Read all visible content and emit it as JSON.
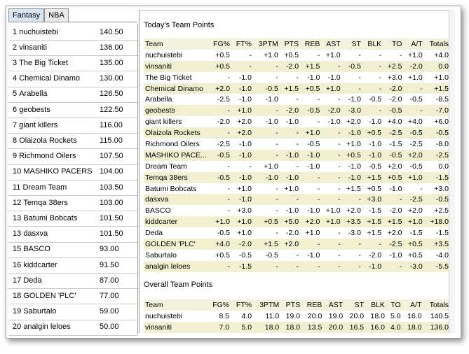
{
  "tabs": [
    "Fantasy",
    "NBA"
  ],
  "standings": [
    {
      "rank": "1",
      "name": "nuchuistebi",
      "points": "140.50"
    },
    {
      "rank": "2",
      "name": "vinsaniti",
      "points": "136.00"
    },
    {
      "rank": "3",
      "name": "The Big Ticket",
      "points": "135.00"
    },
    {
      "rank": "4",
      "name": "Chemical Dinamo",
      "points": "130.00"
    },
    {
      "rank": "5",
      "name": "Arabella",
      "points": "126.50"
    },
    {
      "rank": "6",
      "name": "geobests",
      "points": "122.50"
    },
    {
      "rank": "7",
      "name": "giant killers",
      "points": "116.00"
    },
    {
      "rank": "8",
      "name": "Olaizola Rockets",
      "points": "115.00"
    },
    {
      "rank": "9",
      "name": "Richmond Oilers",
      "points": "107.50"
    },
    {
      "rank": "10",
      "name": "MASHIKO PACERS",
      "points": "104.00"
    },
    {
      "rank": "11",
      "name": "Dream Team",
      "points": "103.50"
    },
    {
      "rank": "12",
      "name": "Temqa 38ers",
      "points": "103.00"
    },
    {
      "rank": "13",
      "name": "Batumi Bobcats",
      "points": "101.50"
    },
    {
      "rank": "13",
      "name": "dasxva",
      "points": "101.50"
    },
    {
      "rank": "15",
      "name": "BASCO",
      "points": "93.00"
    },
    {
      "rank": "16",
      "name": "kiddcarter",
      "points": "91.50"
    },
    {
      "rank": "17",
      "name": "Deda",
      "points": "87.00"
    },
    {
      "rank": "18",
      "name": "GOLDEN 'PLC'",
      "points": "77.00"
    },
    {
      "rank": "19",
      "name": "Saburtalo",
      "points": "59.00"
    },
    {
      "rank": "20",
      "name": "analgin leloes",
      "points": "50.00"
    }
  ],
  "today": {
    "title": "Today's Team Points",
    "columns": [
      "Team",
      "FG%",
      "FT%",
      "3PTM",
      "PTS",
      "REB",
      "AST",
      "ST",
      "BLK",
      "TO",
      "A/T",
      "Totals"
    ],
    "rows": [
      [
        "nuchuistebi",
        "+0.5",
        "-",
        "+1.0",
        "+0.5",
        "-",
        "+1.0",
        "-",
        "-",
        "-",
        "+1.0",
        "+4.0"
      ],
      [
        "vinsaniti",
        "+0.5",
        "-",
        "-",
        "-2.0",
        "+1.5",
        "-",
        "-0.5",
        "-",
        "+2.5",
        "-2.0",
        "0.0"
      ],
      [
        "The Big Ticket",
        "-",
        "-1.0",
        "-",
        "-",
        "-1.0",
        "-1.0",
        "-",
        "-",
        "+3.0",
        "+1.0",
        "+1.0"
      ],
      [
        "Chemical Dinamo",
        "+2.0",
        "-1.0",
        "-0.5",
        "+1.5",
        "+0.5",
        "+1.0",
        "-",
        "-",
        "-2.0",
        "-",
        "+1.5"
      ],
      [
        "Arabella",
        "-2.5",
        "-1.0",
        "-1.0",
        "-",
        "-",
        "-",
        "-1.0",
        "-0.5",
        "-2.0",
        "-0.5",
        "-8.5"
      ],
      [
        "geobests",
        "-",
        "+1.0",
        "-",
        "-2.0",
        "-0.5",
        "-2.0",
        "-3.0",
        "-",
        "-0.5",
        "-",
        "-7.0"
      ],
      [
        "giant killers",
        "-2.0",
        "+2.0",
        "-1.0",
        "-1.0",
        "-",
        "-1.0",
        "+2.0",
        "-1.0",
        "+4.0",
        "+4.0",
        "+6.0"
      ],
      [
        "Olaizola Rockets",
        "-",
        "+2.0",
        "-",
        "-",
        "+1.0",
        "-",
        "-1.0",
        "+0.5",
        "-2.5",
        "-0.5",
        "-0.5"
      ],
      [
        "Richmond Oilers",
        "-2.5",
        "-1.0",
        "-",
        "-",
        "-0.5",
        "-",
        "+1.0",
        "-1.0",
        "-1.5",
        "-2.5",
        "-8.0"
      ],
      [
        "MASHIKO PACE...",
        "-0.5",
        "-1.0",
        "-",
        "-1.0",
        "-1.0",
        "-",
        "+0.5",
        "-1.0",
        "-0.5",
        "+2.0",
        "-2.5"
      ],
      [
        "Dream Team",
        "-",
        "-",
        "+1.0",
        "-",
        "-1.0",
        "-",
        "-1.0",
        "-0.5",
        "+2.0",
        "-0.5",
        "0.0"
      ],
      [
        "Temqa 38ers",
        "-0.5",
        "-1.0",
        "-1.0",
        "-1.0",
        "-",
        "-",
        "-1.0",
        "+1.5",
        "+0.5",
        "+1.0",
        "-1.5"
      ],
      [
        "Batumi Bobcats",
        "-",
        "+1.0",
        "-",
        "+1.0",
        "-",
        "-",
        "+1.5",
        "+0.5",
        "-1.0",
        "-",
        "+3.0"
      ],
      [
        "dasxva",
        "-",
        "-1.0",
        "-",
        "-",
        "-",
        "-",
        "-",
        "+3.0",
        "-",
        "-2.5",
        "-0.5"
      ],
      [
        "BASCO",
        "-",
        "+3.0",
        "-",
        "-1.0",
        "-1.0",
        "+1.0",
        "+2.0",
        "-1.5",
        "-2.0",
        "+2.0",
        "+2.5"
      ],
      [
        "kiddcarter",
        "+1.0",
        "+1.0",
        "+0.5",
        "+5.0",
        "+2.0",
        "+1.0",
        "+3.5",
        "+1.5",
        "+1.5",
        "+1.0",
        "+18.0"
      ],
      [
        "Deda",
        "-0.5",
        "+1.0",
        "-",
        "-2.0",
        "+1.0",
        "-",
        "-3.0",
        "+1.5",
        "+2.0",
        "-1.5",
        "-1.5"
      ],
      [
        "GOLDEN 'PLC'",
        "+4.0",
        "-2.0",
        "+1.5",
        "+2.0",
        "-",
        "-",
        "-",
        "-",
        "-2.5",
        "+0.5",
        "+3.5"
      ],
      [
        "Saburtalo",
        "+0.5",
        "-0.5",
        "-0.5",
        "-",
        "-1.0",
        "-",
        "-",
        "-2.0",
        "-1.0",
        "+0.5",
        "-4.0"
      ],
      [
        "analgin leloes",
        "-",
        "-1.5",
        "-",
        "-",
        "-",
        "-",
        "-",
        "-1.0",
        "-",
        "-3.0",
        "-5.5"
      ]
    ]
  },
  "overall": {
    "title": "Overall Team Points",
    "columns": [
      "Team",
      "FG%",
      "FT%",
      "3PTM",
      "PTS",
      "REB",
      "AST",
      "ST",
      "BLK",
      "TO",
      "A/T",
      "Totals"
    ],
    "rows": [
      [
        "nuchuistebi",
        "8.5",
        "4.0",
        "11.0",
        "19.0",
        "20.0",
        "19.0",
        "20.0",
        "18.0",
        "5.0",
        "16.0",
        "140.5"
      ],
      [
        "vinsaniti",
        "7.0",
        "5.0",
        "18.0",
        "18.0",
        "13.5",
        "20.0",
        "16.5",
        "16.0",
        "4.0",
        "18.0",
        "136.0"
      ]
    ]
  },
  "colors": {
    "row_alt": "#f0efcf",
    "header": "#f2f1dc",
    "tab_active": "#d7e4f2"
  }
}
